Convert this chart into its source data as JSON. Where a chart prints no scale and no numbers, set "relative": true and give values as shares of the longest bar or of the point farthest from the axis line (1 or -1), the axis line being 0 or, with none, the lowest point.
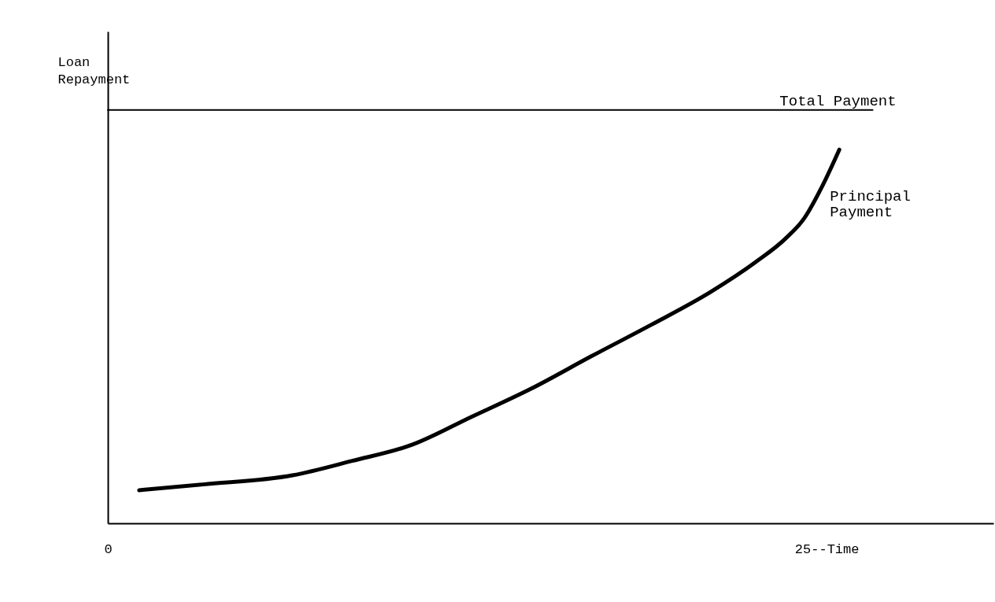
{
  "chart_data": {
    "type": "line",
    "relative": true,
    "ylabel": "Loan Repayment",
    "xlim": [
      0,
      30.8
    ],
    "xticks": [
      0,
      {
        "value": 25,
        "label": "25--Time"
      }
    ],
    "marker": "none",
    "line_style": "solid",
    "series": [
      {
        "name": "Total Payment",
        "color": "#000000",
        "x": [
          0,
          26.6
        ],
        "values": [
          1,
          1
        ]
      },
      {
        "name": "Principal Payment",
        "color": "#000000",
        "x": [
          1.09,
          3.3,
          6.42,
          8.5,
          10.58,
          12.66,
          14.73,
          16.81,
          18.89,
          20.97,
          22.53,
          23.57,
          24.22,
          24.87,
          25.44
        ],
        "values": [
          0.08,
          0.094,
          0.116,
          0.151,
          0.19,
          0.258,
          0.326,
          0.404,
          0.48,
          0.56,
          0.632,
          0.689,
          0.738,
          0.819,
          0.904
        ]
      }
    ]
  }
}
